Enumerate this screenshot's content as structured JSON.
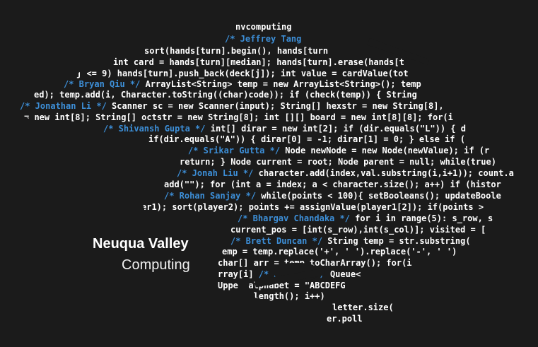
{
  "brand": {
    "line1": "Neuqua Valley",
    "line2": "Computing"
  },
  "code_lines": [
    {
      "pre": "nvcomputing",
      "comment": "",
      "post": ""
    },
    {
      "pre": "",
      "comment": "/* Jeffrey Tang",
      "post": ""
    },
    {
      "pre": "sort(hands[turn].begin(), hands[turn",
      "comment": "",
      "post": ""
    },
    {
      "pre": "int card = hands[turn][median]; hands[turn].erase(hands[t",
      "comment": "",
      "post": ""
    },
    {
      "pre": "j <= 9) hands[turn].push_back(deck[j]); int value = cardValue(tot",
      "comment": "",
      "post": ""
    },
    {
      "pre": "",
      "comment": "/* Bryan Qiu */",
      "post": " ArrayList<String> temp = new ArrayList<String>(); temp"
    },
    {
      "pre": "ed); temp.add(i, Character.toString((char)code)); if (check(temp)) { String",
      "comment": "",
      "post": ""
    },
    {
      "pre": "",
      "comment": "/* Jonathan Li */",
      "post": " Scanner sc = new Scanner(input); String[] hexstr = new String[8],"
    },
    {
      "pre": "= new int[8]; String[] octstr = new String[8]; int [][] board = new int[8][8]; for(i",
      "comment": "",
      "post": ""
    },
    {
      "pre": "",
      "comment": "/* Shivansh Gupta */",
      "post": " int[] dirar = new int[2]; if (dir.equals(\"L\")) { d"
    },
    {
      "pre": "if(dir.equals(\"A\")) { dirar[0] = -1; dirar[1] = 0; } else if (",
      "comment": "",
      "post": ""
    },
    {
      "pre": "",
      "comment": "/* Srikar Gutta */",
      "post": " Node newNode = new Node(newValue); if (r"
    },
    {
      "pre": "return; } Node current = root; Node parent = null; while(true)",
      "comment": "",
      "post": ""
    },
    {
      "pre": "",
      "comment": "/* Jonah Liu */",
      "post": " character.add(index,val.substring(i,i+1)); count.a"
    },
    {
      "pre": "add(\"\"); for (int a = index; a < character.size(); a++) if (histor",
      "comment": "",
      "post": ""
    },
    {
      "pre": "",
      "comment": "/* Rohan Sanjay */",
      "post": " while(points < 100){ setBooleans(); updateBoole"
    },
    {
      "pre": "er1); sort(player2); points += assignValue(player1[2]); if(points >",
      "comment": "",
      "post": ""
    },
    {
      "pre": "",
      "comment": "/* Bhargav Chandaka */",
      "post": " for i in range(5): s_row, s"
    },
    {
      "pre": "current_pos = [int(s_row),int(s_col)]; visited = [",
      "comment": "",
      "post": ""
    },
    {
      "pre": "",
      "comment": "/* Brett Duncan */",
      "post": " String temp = str.substring("
    },
    {
      "pre": "emp = temp.replace('+', ' ').replace('-', ' ')",
      "comment": "",
      "post": ""
    },
    {
      "pre": "char[] arr = temp.toCharArray(); for(i",
      "comment": "",
      "post": ""
    },
    {
      "pre": "rray[i] ",
      "comment": "/* Andy Li */",
      "post": " Queue<"
    },
    {
      "pre": "Uppe  alphabet = \"ABCDEFG",
      "comment": "",
      "post": ""
    },
    {
      "pre": "for   .length(); i++)",
      "comment": "",
      "post": ""
    },
    {
      "pre": "letter.size(",
      "comment": "",
      "post": ""
    },
    {
      "pre": "er.poll",
      "comment": "",
      "post": ""
    }
  ]
}
